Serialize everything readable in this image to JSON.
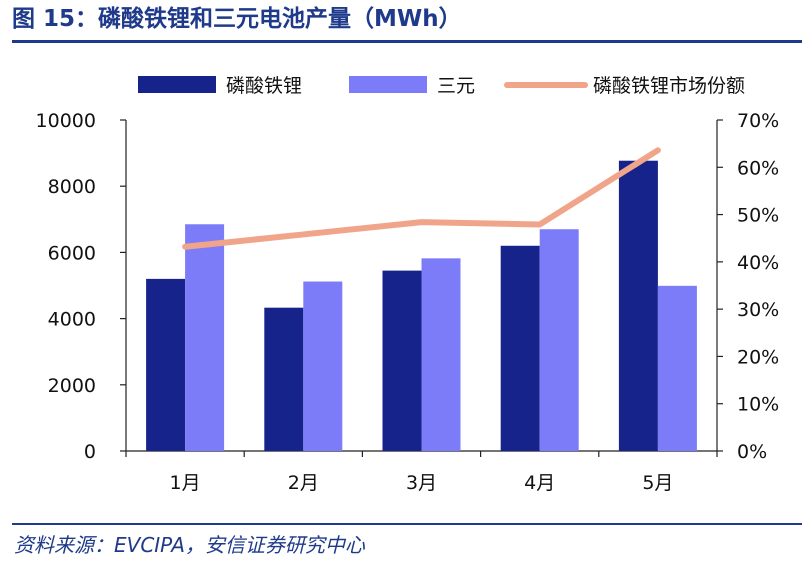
{
  "title": "图 15：磷酸铁锂和三元电池产量（MWh）",
  "source": "资料来源：EVCIPA，安信证券研究中心",
  "colors": {
    "lfp": "#16238a",
    "ncm": "#7c7cf8",
    "share": "#f0a58a",
    "accent": "#1f3a8a",
    "axis": "#222222"
  },
  "chart_data": {
    "type": "bar",
    "title": "磷酸铁锂和三元电池产量（MWh）",
    "categories": [
      "1月",
      "2月",
      "3月",
      "4月",
      "5月"
    ],
    "series": [
      {
        "name": "磷酸铁锂",
        "type": "bar",
        "axis": "left",
        "values": [
          5200,
          4330,
          5450,
          6200,
          8770
        ]
      },
      {
        "name": "三元",
        "type": "bar",
        "axis": "left",
        "values": [
          6850,
          5120,
          5820,
          6700,
          4990
        ]
      },
      {
        "name": "磷酸铁锂市场份额",
        "type": "line",
        "axis": "right",
        "values": [
          43.2,
          45.8,
          48.4,
          47.9,
          63.6
        ]
      }
    ],
    "y_left": {
      "min": 0,
      "max": 10000,
      "ticks": [
        0,
        2000,
        4000,
        6000,
        8000,
        10000
      ],
      "labels": [
        "0",
        "2000",
        "4000",
        "6000",
        "8000",
        "10000"
      ]
    },
    "y_right": {
      "min": 0,
      "max": 70,
      "ticks": [
        0,
        10,
        20,
        30,
        40,
        50,
        60,
        70
      ],
      "labels": [
        "0%",
        "10%",
        "20%",
        "30%",
        "40%",
        "50%",
        "60%",
        "70%"
      ]
    },
    "legend_position": "top",
    "grid": false
  }
}
